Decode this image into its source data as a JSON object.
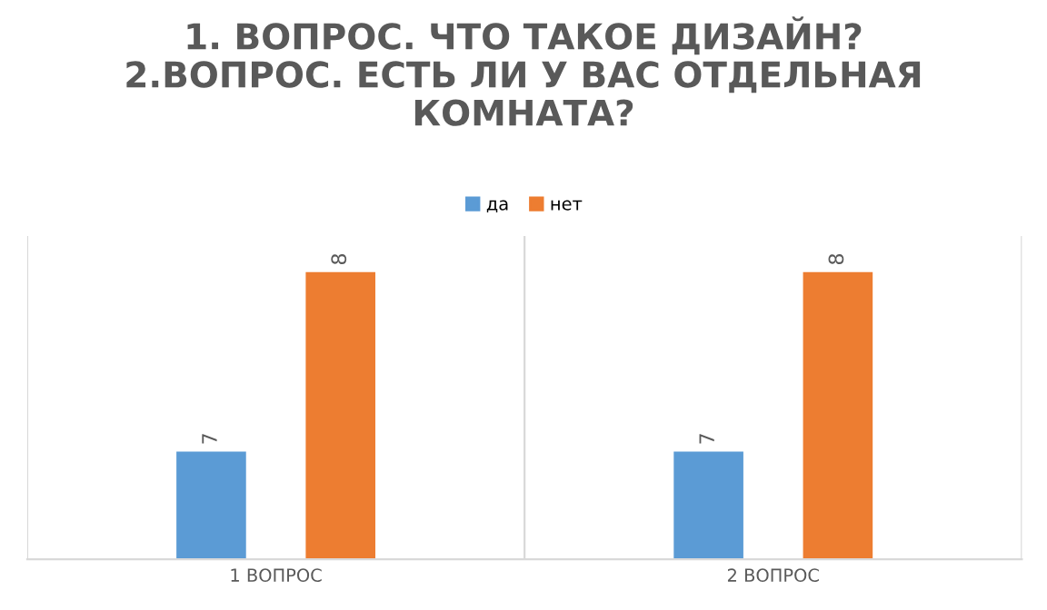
{
  "chart_data": {
    "type": "bar",
    "title": "1. ВОПРОС. ЧТО ТАКОЕ ДИЗАЙН?\n2.ВОПРОС. ЕСТЬ ЛИ У ВАС ОТДЕЛЬНАЯ\nКОМНАТА?",
    "categories": [
      "1 ВОПРОС",
      "2 ВОПРОС"
    ],
    "series": [
      {
        "name": "да",
        "color": "#5b9bd5",
        "values": [
          7,
          7
        ]
      },
      {
        "name": "нет",
        "color": "#ed7d31",
        "values": [
          8,
          8
        ]
      }
    ],
    "ylim": [
      6.4,
      8.2
    ],
    "data_labels": true,
    "legend": "top",
    "grid": "x",
    "tick_labels": "x"
  }
}
